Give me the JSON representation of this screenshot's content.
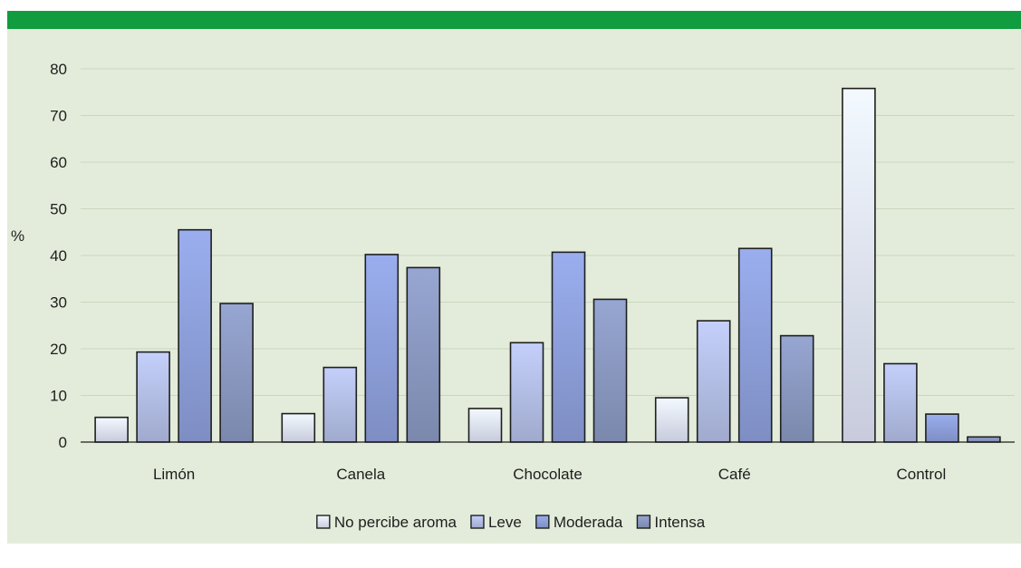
{
  "chart_data": {
    "type": "bar",
    "ylabel": "%",
    "ylim": [
      0,
      80
    ],
    "yticks": [
      0,
      10,
      20,
      30,
      40,
      50,
      60,
      70,
      80
    ],
    "categories": [
      "Limón",
      "Canela",
      "Chocolate",
      "Café",
      "Control"
    ],
    "series": [
      {
        "name": "No percibe aroma",
        "values": [
          5.3,
          6.1,
          7.2,
          9.5,
          75.8
        ],
        "color": "#dde2f4"
      },
      {
        "name": "Leve",
        "values": [
          19.3,
          16.0,
          21.3,
          26.0,
          16.8
        ],
        "color": "#b2bde4"
      },
      {
        "name": "Moderada",
        "values": [
          45.5,
          40.2,
          40.7,
          41.5,
          6.0
        ],
        "color": "#8c9ed9"
      },
      {
        "name": "Intensa",
        "values": [
          29.7,
          37.4,
          30.6,
          22.8,
          1.1
        ],
        "color": "#8997bf"
      }
    ],
    "grid": true,
    "legend_position": "bottom"
  }
}
